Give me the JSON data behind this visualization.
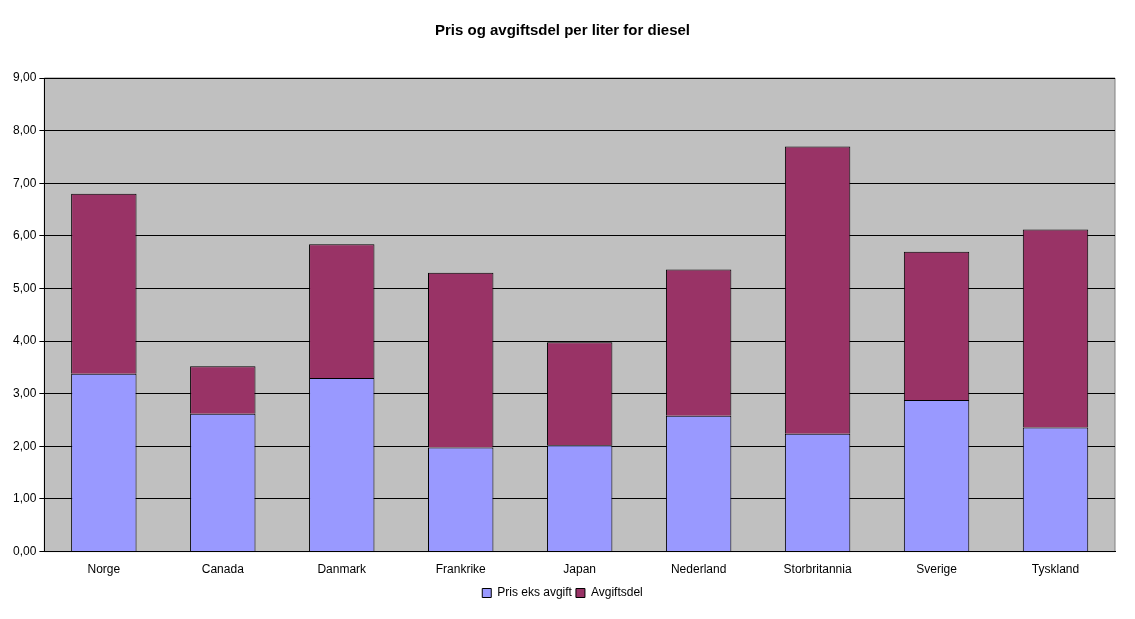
{
  "chart_data": {
    "type": "bar",
    "title": "Pris og avgiftsdel per liter for diesel",
    "categories": [
      "Norge",
      "Canada",
      "Danmark",
      "Frankrike",
      "Japan",
      "Nederland",
      "Storbritannia",
      "Sverige",
      "Tyskland"
    ],
    "series": [
      {
        "name": "Pris eks avgift",
        "color": "#9999ff",
        "values": [
          3.38,
          2.62,
          3.3,
          1.98,
          2.02,
          2.58,
          2.24,
          2.88,
          2.36
        ]
      },
      {
        "name": "Avgiftsdel",
        "color": "#993366",
        "values": [
          3.42,
          0.9,
          2.54,
          3.32,
          1.96,
          2.78,
          5.46,
          2.82,
          3.76
        ]
      }
    ],
    "stacked": true,
    "ylim": [
      0,
      9
    ],
    "yticks": [
      {
        "value": 0,
        "label": "0,00"
      },
      {
        "value": 1,
        "label": "1,00"
      },
      {
        "value": 2,
        "label": "2,00"
      },
      {
        "value": 3,
        "label": "3,00"
      },
      {
        "value": 4,
        "label": "4,00"
      },
      {
        "value": 5,
        "label": "5,00"
      },
      {
        "value": 6,
        "label": "6,00"
      },
      {
        "value": 7,
        "label": "7,00"
      },
      {
        "value": 8,
        "label": "8,00"
      },
      {
        "value": 9,
        "label": "9,00"
      }
    ],
    "grid": "y",
    "legend": "bottom"
  }
}
